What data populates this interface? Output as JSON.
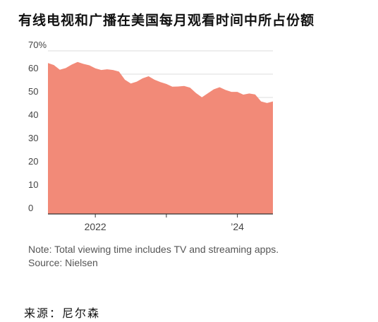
{
  "header": {
    "title": "有线电视和广播在美国每月观看时间中所占份额"
  },
  "chart_data": {
    "type": "area",
    "title": "有线电视和广播在美国每月观看时间中所占份额",
    "xlabel": "",
    "ylabel": "",
    "y_unit": "%",
    "ylim": [
      0,
      70
    ],
    "y_ticks": [
      {
        "value": 70,
        "label": "70%"
      },
      {
        "value": 60,
        "label": "60"
      },
      {
        "value": 50,
        "label": "50"
      },
      {
        "value": 40,
        "label": "40"
      },
      {
        "value": 30,
        "label": "30"
      },
      {
        "value": 20,
        "label": "20"
      },
      {
        "value": 10,
        "label": "10"
      },
      {
        "value": 0,
        "label": "0"
      }
    ],
    "xlim": [
      "2021-05",
      "2024-07"
    ],
    "x_ticks": [
      {
        "value": "2022-01",
        "label": "2022"
      },
      {
        "value": "2024-01",
        "label": "’24"
      }
    ],
    "x_minor_ticks": [
      "2023-01"
    ],
    "grid": "horizontal",
    "legend": "none",
    "fill_color": "#f28a78",
    "grid_color": "#dddddd",
    "series": [
      {
        "x": [
          "2021-05",
          "2021-06",
          "2021-07",
          "2021-08",
          "2021-09",
          "2021-10",
          "2021-11",
          "2021-12",
          "2022-01",
          "2022-02",
          "2022-03",
          "2022-04",
          "2022-05",
          "2022-06",
          "2022-07",
          "2022-08",
          "2022-09",
          "2022-10",
          "2022-11",
          "2022-12",
          "2023-01",
          "2023-02",
          "2023-03",
          "2023-04",
          "2023-05",
          "2023-06",
          "2023-07",
          "2023-08",
          "2023-09",
          "2023-10",
          "2023-11",
          "2023-12",
          "2024-01",
          "2024-02",
          "2024-03",
          "2024-04",
          "2024-05",
          "2024-06",
          "2024-07"
        ],
        "values": [
          64.8,
          63.9,
          61.9,
          62.6,
          64.1,
          65.2,
          64.4,
          63.8,
          62.5,
          61.8,
          62.1,
          61.8,
          61.1,
          57.6,
          56.0,
          56.8,
          58.2,
          59.1,
          57.6,
          56.6,
          55.8,
          54.6,
          54.7,
          54.9,
          54.2,
          51.9,
          50.1,
          51.8,
          53.5,
          54.4,
          53.2,
          52.4,
          52.4,
          51.2,
          51.7,
          51.3,
          48.3,
          47.6,
          48.3
        ]
      }
    ]
  },
  "footer": {
    "note": "Note: Total viewing time includes TV and streaming apps.",
    "source": "Source: Nielsen",
    "source_cn": "来源：尼尔森"
  }
}
